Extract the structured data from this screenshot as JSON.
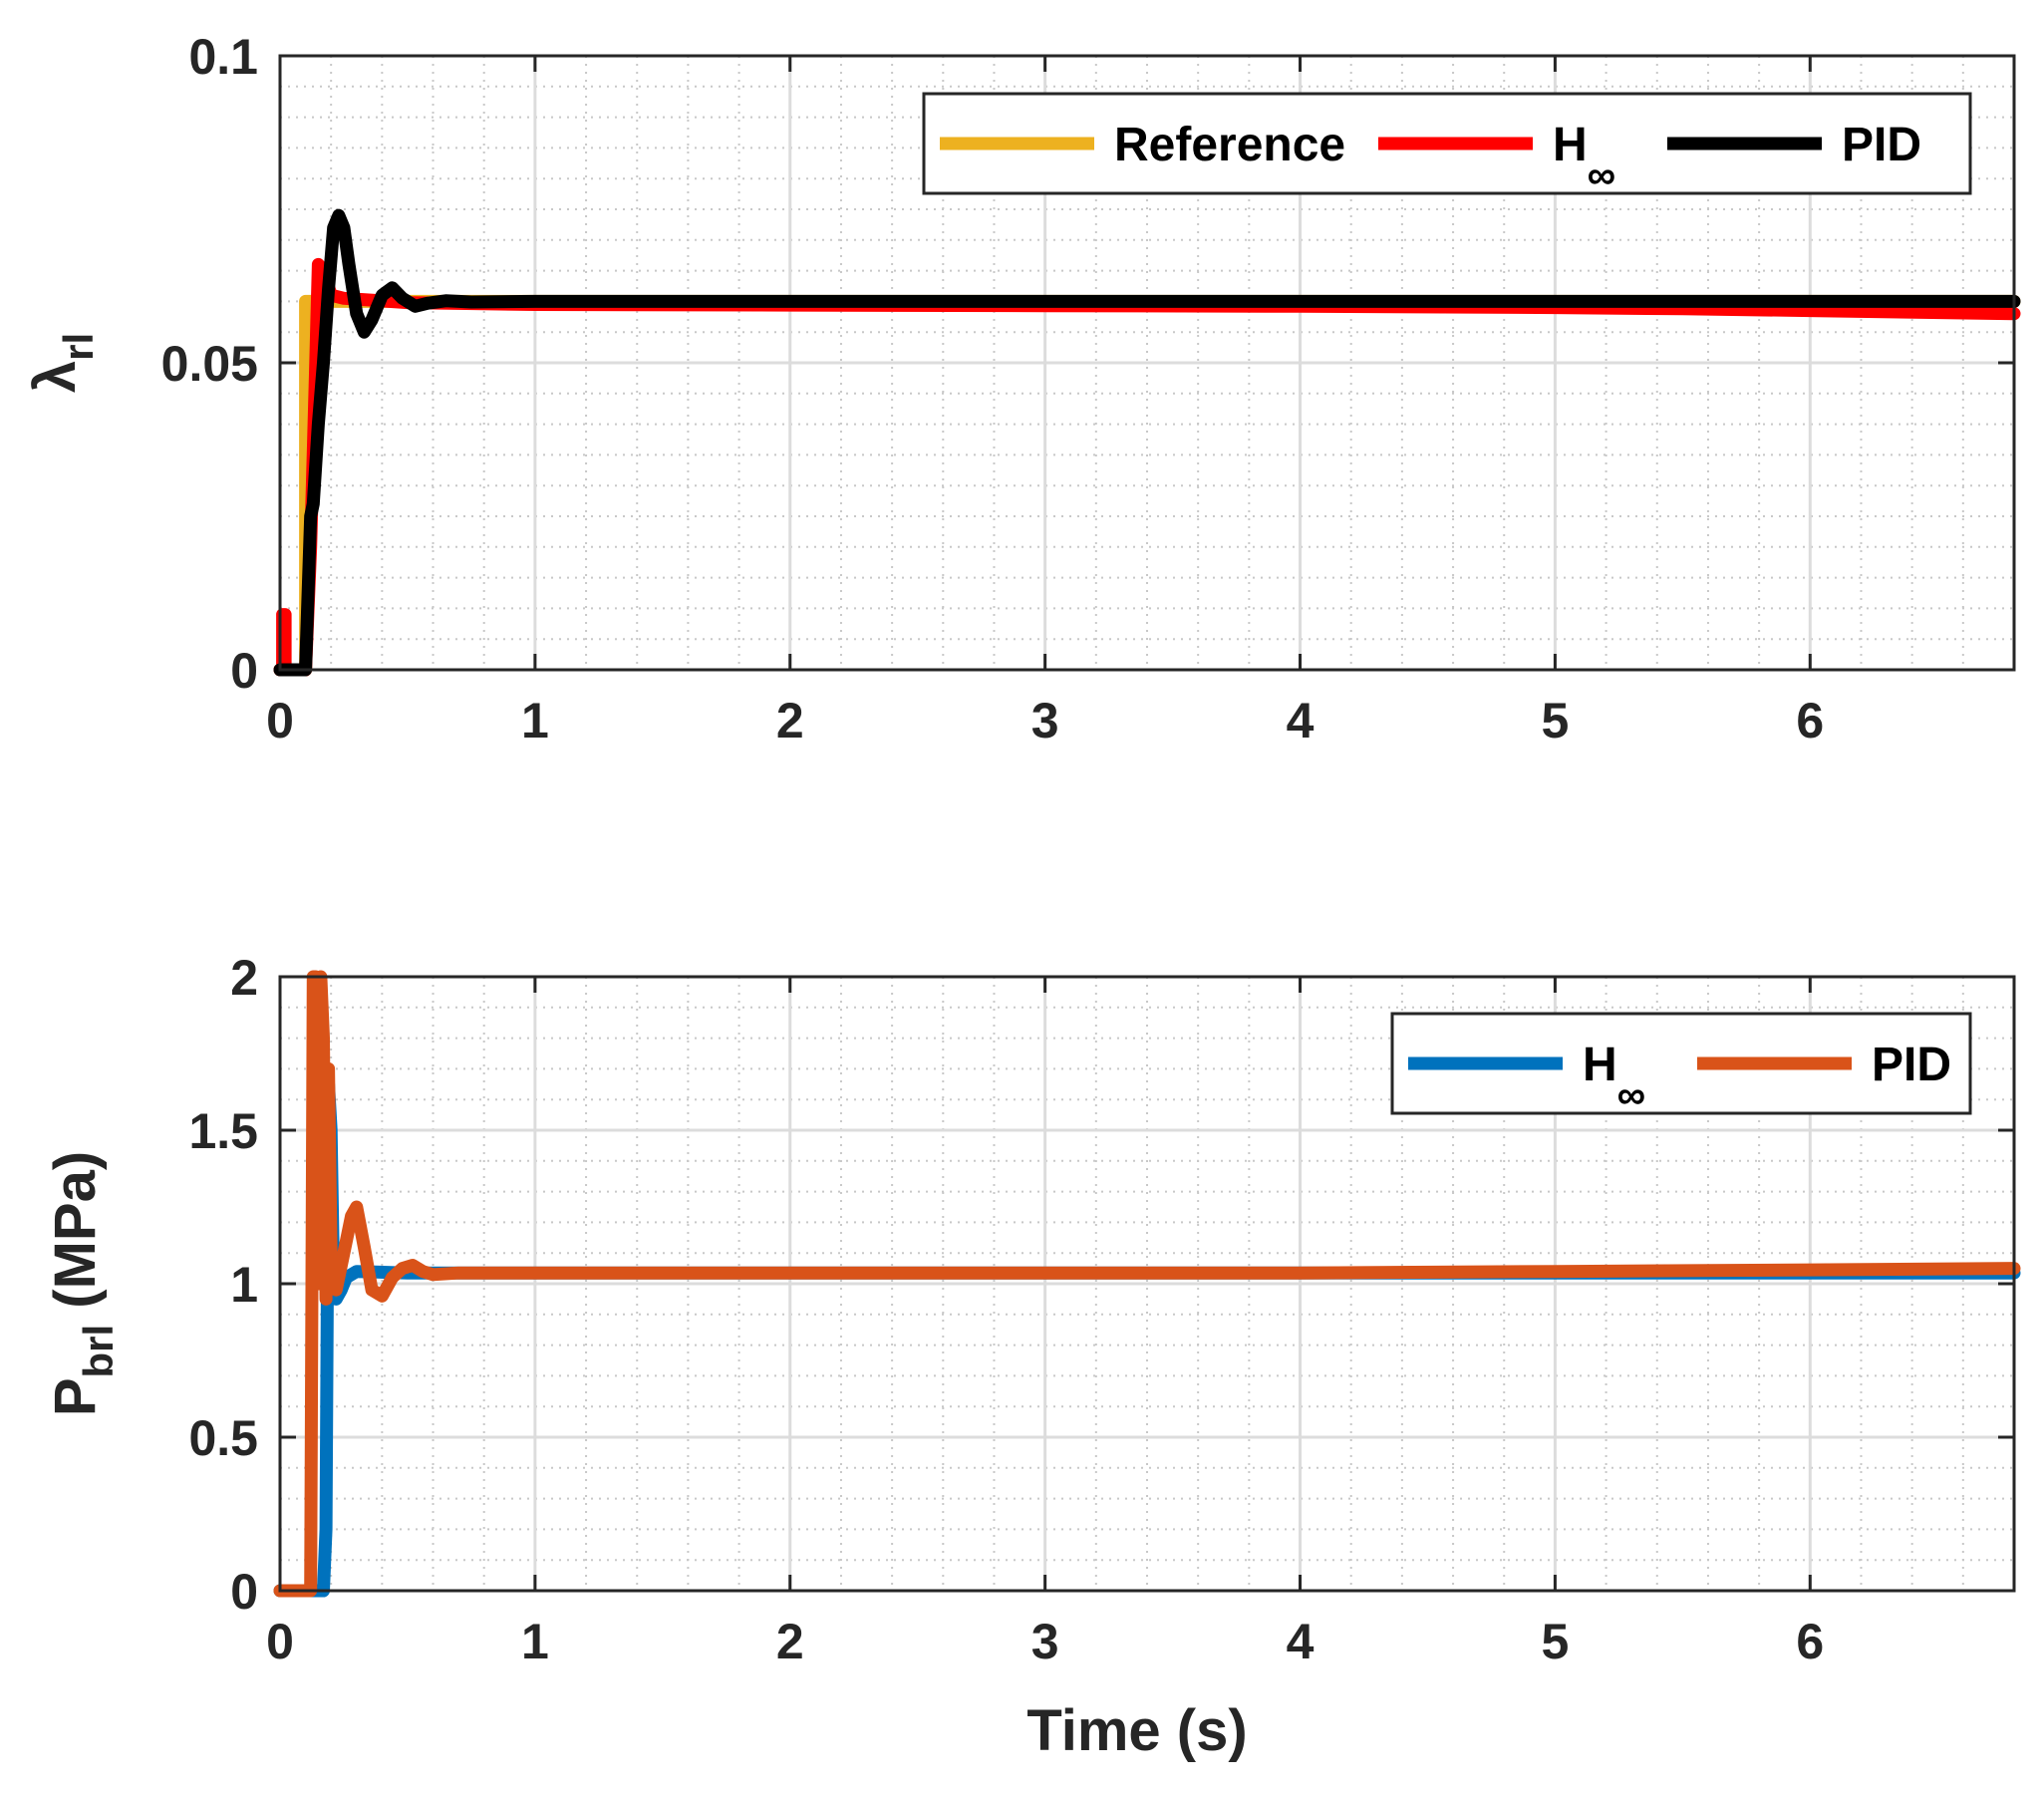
{
  "chart_data": [
    {
      "type": "line",
      "title": "",
      "xlabel": "",
      "ylabel_main": "λ",
      "ylabel_sub": "rl",
      "xlim": [
        0,
        6.8
      ],
      "ylim": [
        0,
        0.1
      ],
      "xticks": [
        0,
        1,
        2,
        3,
        4,
        5,
        6
      ],
      "xtick_labels": [
        "0",
        "1",
        "2",
        "3",
        "4",
        "5",
        "6"
      ],
      "yticks": [
        0,
        0.05,
        0.1
      ],
      "ytick_labels": [
        "0",
        "0.05",
        "0.1"
      ],
      "grid": true,
      "legend_position": "top-right",
      "legend": [
        {
          "label": "Reference",
          "sub": "",
          "color": "#EDB120"
        },
        {
          "label": "H",
          "sub": "∞",
          "color": "#FF0000"
        },
        {
          "label": "PID",
          "sub": "",
          "color": "#000000"
        }
      ],
      "series": [
        {
          "name": "Reference",
          "color": "#EDB120",
          "x": [
            0,
            0.1,
            0.1,
            0.12,
            0.6,
            6.8
          ],
          "y": [
            0,
            0,
            0.06,
            0.06,
            0.06,
            0.06
          ]
        },
        {
          "name": "H∞",
          "color": "#FF0000",
          "x": [
            0,
            0.01,
            0.01,
            0.02,
            0.02,
            0.1,
            0.12,
            0.14,
            0.15,
            0.17,
            0.2,
            0.25,
            0.5,
            1,
            2,
            3,
            4,
            5,
            5.5,
            6,
            6.8
          ],
          "y": [
            0,
            0,
            0.009,
            0.009,
            0,
            0,
            0.02,
            0.05,
            0.066,
            0.065,
            0.061,
            0.0605,
            0.0598,
            0.0595,
            0.0594,
            0.0593,
            0.0592,
            0.059,
            0.0588,
            0.0585,
            0.058
          ]
        },
        {
          "name": "PID",
          "color": "#000000",
          "x": [
            0,
            0.05,
            0.1,
            0.12,
            0.13,
            0.15,
            0.17,
            0.19,
            0.21,
            0.23,
            0.25,
            0.27,
            0.3,
            0.33,
            0.36,
            0.4,
            0.44,
            0.48,
            0.53,
            0.58,
            0.65,
            0.75,
            1,
            2,
            3,
            4,
            5,
            6,
            6.8
          ],
          "y": [
            0,
            0,
            0,
            0.025,
            0.027,
            0.04,
            0.05,
            0.062,
            0.072,
            0.074,
            0.072,
            0.066,
            0.058,
            0.055,
            0.057,
            0.061,
            0.0622,
            0.0605,
            0.0592,
            0.0597,
            0.0601,
            0.0599,
            0.06,
            0.06,
            0.06,
            0.06,
            0.06,
            0.06,
            0.06
          ]
        }
      ]
    },
    {
      "type": "line",
      "title": "",
      "xlabel": "Time (s)",
      "ylabel_main": "P",
      "ylabel_sub": "brl",
      "ylabel_suffix": " (MPa)",
      "xlim": [
        0,
        6.8
      ],
      "ylim": [
        0,
        2
      ],
      "xticks": [
        0,
        1,
        2,
        3,
        4,
        5,
        6
      ],
      "xtick_labels": [
        "0",
        "1",
        "2",
        "3",
        "4",
        "5",
        "6"
      ],
      "yticks": [
        0,
        0.5,
        1,
        1.5,
        2
      ],
      "ytick_labels": [
        "0",
        "0.5",
        "1",
        "1.5",
        "2"
      ],
      "grid": true,
      "legend_position": "top-right",
      "legend": [
        {
          "label": "H",
          "sub": "∞",
          "color": "#0072BD"
        },
        {
          "label": "PID",
          "sub": "",
          "color": "#D95319"
        }
      ],
      "series": [
        {
          "name": "H∞",
          "color": "#0072BD",
          "x": [
            0,
            0.17,
            0.18,
            0.19,
            0.2,
            0.21,
            0.22,
            0.24,
            0.26,
            0.3,
            0.5,
            1,
            2,
            3,
            4,
            5,
            6,
            6.8
          ],
          "y": [
            0,
            0,
            0.2,
            1.65,
            1.5,
            1.0,
            0.95,
            0.98,
            1.02,
            1.04,
            1.035,
            1.035,
            1.035,
            1.035,
            1.035,
            1.035,
            1.035,
            1.035
          ]
        },
        {
          "name": "PID",
          "color": "#D95319",
          "x": [
            0,
            0.12,
            0.13,
            0.14,
            0.15,
            0.16,
            0.17,
            0.18,
            0.19,
            0.2,
            0.22,
            0.25,
            0.28,
            0.3,
            0.33,
            0.36,
            0.4,
            0.44,
            0.48,
            0.52,
            0.56,
            0.6,
            0.7,
            1,
            2,
            3,
            4,
            5,
            6,
            6.8
          ],
          "y": [
            0,
            0,
            2.0,
            2.0,
            1.0,
            2.0,
            1.8,
            0.95,
            1.7,
            1.1,
            0.98,
            1.1,
            1.22,
            1.25,
            1.12,
            0.98,
            0.96,
            1.02,
            1.05,
            1.06,
            1.04,
            1.03,
            1.035,
            1.035,
            1.035,
            1.035,
            1.035,
            1.04,
            1.045,
            1.05
          ]
        }
      ]
    }
  ]
}
